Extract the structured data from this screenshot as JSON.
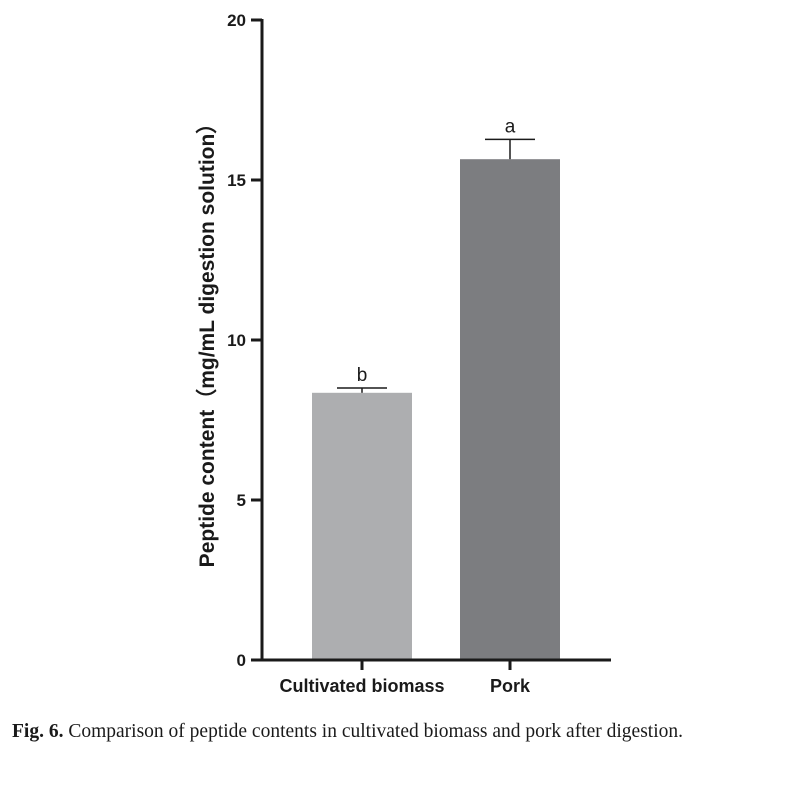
{
  "chart_data": {
    "type": "bar",
    "categories": [
      "Cultivated biomass",
      "Pork"
    ],
    "values": [
      8.35,
      15.65
    ],
    "errors": [
      0.15,
      0.62
    ],
    "significance": [
      "b",
      "a"
    ],
    "colors": [
      "#adaeb0",
      "#7c7d80"
    ],
    "ylabel": "Peptide content（mg/mL digestion solution）",
    "xlabel": "",
    "ylim": [
      0,
      20
    ],
    "yticks": [
      0,
      5,
      10,
      15,
      20
    ],
    "grid": false,
    "legend": "none"
  },
  "caption": {
    "figure_number": "Fig. 6.",
    "text": "Comparison of peptide contents in cultivated biomass and pork after digestion."
  }
}
